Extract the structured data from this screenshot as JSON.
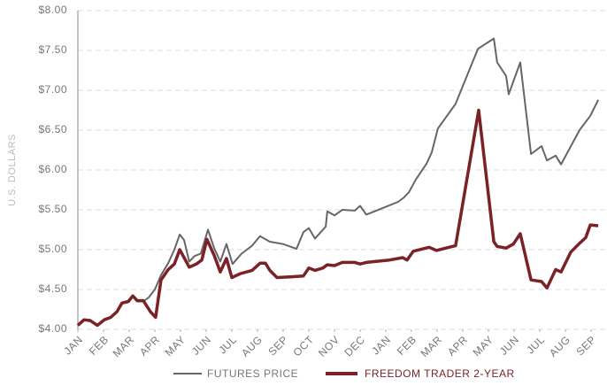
{
  "chart_data": {
    "type": "line",
    "y_label": "U.S. DOLLARS",
    "xlim": [
      0,
      20.4
    ],
    "xticks": [
      {
        "value": 0,
        "label": "JAN"
      },
      {
        "value": 1,
        "label": "FEB"
      },
      {
        "value": 2,
        "label": "MAR"
      },
      {
        "value": 3,
        "label": "APR"
      },
      {
        "value": 4,
        "label": "MAY"
      },
      {
        "value": 5,
        "label": "JUN"
      },
      {
        "value": 6,
        "label": "JUL"
      },
      {
        "value": 7,
        "label": "AUG"
      },
      {
        "value": 8,
        "label": "SEP"
      },
      {
        "value": 9,
        "label": "OCT"
      },
      {
        "value": 10,
        "label": "NOV"
      },
      {
        "value": 11,
        "label": "DEC"
      },
      {
        "value": 12,
        "label": "JAN"
      },
      {
        "value": 13,
        "label": "FEB"
      },
      {
        "value": 14,
        "label": "MAR"
      },
      {
        "value": 15,
        "label": "APR"
      },
      {
        "value": 16,
        "label": "MAY"
      },
      {
        "value": 17,
        "label": "JUN"
      },
      {
        "value": 18,
        "label": "JUL"
      },
      {
        "value": 19,
        "label": "AUG"
      },
      {
        "value": 20,
        "label": "SEP"
      }
    ],
    "ylim": [
      4,
      8
    ],
    "yticks": [
      {
        "value": 4,
        "label": "$4.00"
      },
      {
        "value": 4.5,
        "label": "$4.50"
      },
      {
        "value": 5,
        "label": "$5.00"
      },
      {
        "value": 5.5,
        "label": "$5.50"
      },
      {
        "value": 6,
        "label": "$6.00"
      },
      {
        "value": 6.5,
        "label": "$6.50"
      },
      {
        "value": 7,
        "label": "$7.00"
      },
      {
        "value": 7.5,
        "label": "$7.50"
      },
      {
        "value": 8,
        "label": "$8.00"
      }
    ],
    "grid": true,
    "legend": "bottom",
    "series": [
      {
        "name": "FUTURES PRICE",
        "color": "#666666",
        "x": [
          0,
          0.24,
          0.48,
          0.76,
          1.03,
          1.24,
          1.52,
          1.72,
          1.97,
          2.14,
          2.31,
          2.55,
          2.76,
          3,
          3.24,
          3.52,
          3.76,
          3.97,
          4.14,
          4.34,
          4.55,
          4.79,
          5.07,
          5.31,
          5.55,
          5.79,
          6.03,
          6.38,
          6.79,
          7.1,
          7.48,
          8,
          8.52,
          8.79,
          9,
          9.24,
          9.66,
          9.72,
          10,
          10.31,
          10.79,
          11,
          11.24,
          11.79,
          12.48,
          12.69,
          12.9,
          13.17,
          13.59,
          13.79,
          14.03,
          14.72,
          15.59,
          16.21,
          16.34,
          16.69,
          16.79,
          17.24,
          17.66,
          18.07,
          18.28,
          18.62,
          18.83,
          19.55,
          19.97,
          20.28
        ],
        "values": [
          4.05,
          4.12,
          4.12,
          4.05,
          4.12,
          4.15,
          4.22,
          4.33,
          4.35,
          4.42,
          4.35,
          4.35,
          4.4,
          4.5,
          4.68,
          4.83,
          5,
          5.19,
          5.12,
          4.85,
          4.92,
          4.95,
          5.25,
          5.02,
          4.85,
          5.07,
          4.82,
          4.95,
          5.05,
          5.17,
          5.1,
          5.07,
          5.01,
          5.22,
          5.27,
          5.14,
          5.29,
          5.48,
          5.43,
          5.5,
          5.49,
          5.55,
          5.44,
          5.51,
          5.6,
          5.65,
          5.72,
          5.88,
          6.08,
          6.22,
          6.52,
          6.83,
          7.52,
          7.65,
          7.35,
          7.18,
          6.95,
          7.35,
          6.2,
          6.3,
          6.12,
          6.18,
          6.07,
          6.5,
          6.68,
          6.88
        ]
      },
      {
        "name": "FREEDOM TRADER 2-YEAR",
        "color": "#7b2226",
        "x": [
          0,
          0.24,
          0.48,
          0.76,
          1.03,
          1.28,
          1.52,
          1.72,
          1.97,
          2.14,
          2.31,
          2.55,
          2.83,
          3.03,
          3.24,
          3.52,
          3.76,
          3.97,
          4.14,
          4.34,
          4.62,
          4.83,
          5.03,
          5.31,
          5.55,
          5.79,
          6,
          6.34,
          6.79,
          7.1,
          7.31,
          7.48,
          7.76,
          8.34,
          8.79,
          9,
          9.24,
          9.55,
          9.72,
          10,
          10.31,
          10.79,
          11,
          11.24,
          12.14,
          12.66,
          12.83,
          13.07,
          13.69,
          13.97,
          14.72,
          15.62,
          16.21,
          16.34,
          16.69,
          16.97,
          17.24,
          17.66,
          18.07,
          18.28,
          18.62,
          18.83,
          19.21,
          19.55,
          19.79,
          19.97,
          20.28
        ],
        "values": [
          4.05,
          4.12,
          4.11,
          4.05,
          4.12,
          4.15,
          4.22,
          4.33,
          4.35,
          4.42,
          4.36,
          4.36,
          4.22,
          4.15,
          4.62,
          4.75,
          4.82,
          5,
          4.9,
          4.78,
          4.82,
          4.87,
          5.13,
          4.93,
          4.72,
          4.89,
          4.65,
          4.7,
          4.74,
          4.83,
          4.83,
          4.74,
          4.65,
          4.66,
          4.67,
          4.77,
          4.74,
          4.77,
          4.81,
          4.8,
          4.84,
          4.84,
          4.82,
          4.84,
          4.87,
          4.9,
          4.87,
          4.98,
          5.03,
          4.99,
          5.05,
          6.75,
          5.1,
          5.04,
          5.02,
          5.07,
          5.2,
          4.62,
          4.6,
          4.52,
          4.75,
          4.72,
          4.97,
          5.08,
          5.15,
          5.31,
          5.3
        ]
      }
    ]
  }
}
